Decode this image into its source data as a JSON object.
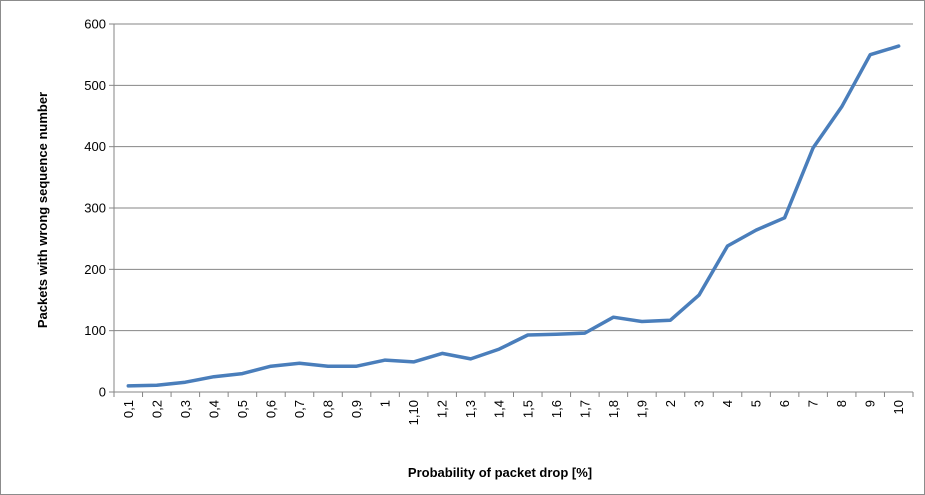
{
  "chart_data": {
    "type": "line",
    "title": "",
    "xlabel": "Probability of packet drop [%]",
    "ylabel": "Packets with wrong sequence number",
    "categories": [
      "0,1",
      "0,2",
      "0,3",
      "0,4",
      "0,5",
      "0,6",
      "0,7",
      "0,8",
      "0,9",
      "1",
      "1,10",
      "1,2",
      "1,3",
      "1,4",
      "1,5",
      "1,6",
      "1,7",
      "1,8",
      "1,9",
      "2",
      "3",
      "4",
      "5",
      "6",
      "7",
      "8",
      "9",
      "10"
    ],
    "series": [
      {
        "values": [
          10,
          11,
          16,
          25,
          30,
          42,
          47,
          42,
          42,
          52,
          49,
          63,
          54,
          70,
          93,
          94,
          96,
          122,
          115,
          117,
          158,
          238,
          264,
          284,
          398,
          465,
          550,
          564
        ],
        "color": "#4a7ebb"
      }
    ],
    "ylim": [
      0,
      600
    ],
    "yticks": [
      0,
      100,
      200,
      300,
      400,
      500,
      600
    ],
    "grid": true,
    "legend": "none",
    "gridline_color": "#868686"
  }
}
